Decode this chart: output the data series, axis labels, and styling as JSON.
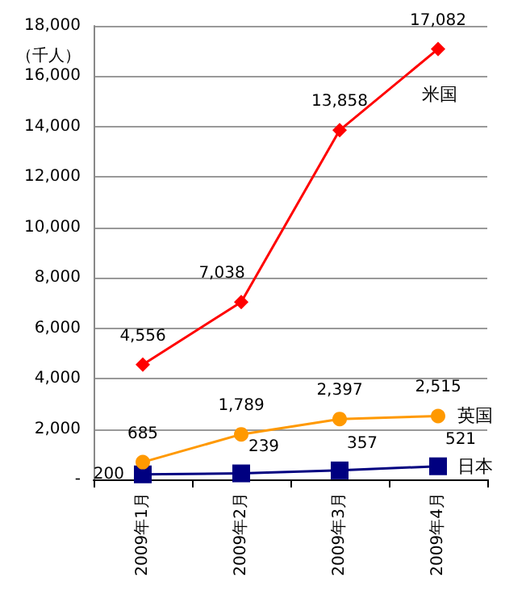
{
  "chart_data": {
    "type": "line",
    "ylabel": "（千人）",
    "categories": [
      "2009年1月",
      "2009年2月",
      "2009年3月",
      "2009年4月"
    ],
    "series": [
      {
        "name": "米国",
        "color": "#ff0000",
        "marker": "diamond",
        "values": [
          4556,
          7038,
          13858,
          17082
        ],
        "value_labels": [
          "4,556",
          "7,038",
          "13,858",
          "17,082"
        ]
      },
      {
        "name": "英国",
        "color": "#ff9900",
        "marker": "circle",
        "values": [
          685,
          1789,
          2397,
          2515
        ],
        "value_labels": [
          "685",
          "1,789",
          "2,397",
          "2,515"
        ]
      },
      {
        "name": "日本",
        "color": "#000080",
        "marker": "square",
        "values": [
          200,
          239,
          357,
          521
        ],
        "value_labels": [
          "200",
          "239",
          "357",
          "521"
        ]
      }
    ],
    "ylim": [
      0,
      18000
    ],
    "yticks": [
      {
        "value": 0,
        "label": "-"
      },
      {
        "value": 2000,
        "label": "2,000"
      },
      {
        "value": 4000,
        "label": "4,000"
      },
      {
        "value": 6000,
        "label": "6,000"
      },
      {
        "value": 8000,
        "label": "8,000"
      },
      {
        "value": 10000,
        "label": "10,000"
      },
      {
        "value": 12000,
        "label": "12,000"
      },
      {
        "value": 14000,
        "label": "14,000"
      },
      {
        "value": 16000,
        "label": "16,000"
      },
      {
        "value": 18000,
        "label": "18,000"
      }
    ],
    "grid": "y",
    "legend": false,
    "line_style": "solid"
  }
}
